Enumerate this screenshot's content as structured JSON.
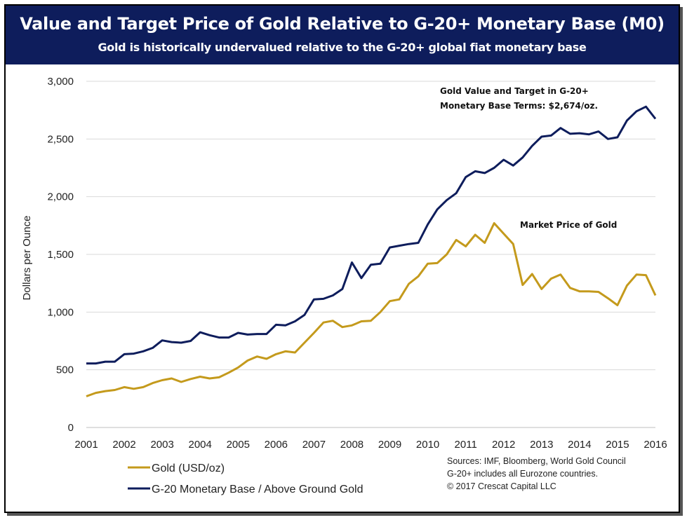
{
  "header": {
    "title": "Value and Target Price of Gold Relative to G-20+ Monetary Base (M0)",
    "subtitle": "Gold is historically undervalued relative to the G-20+ global fiat monetary base",
    "background": "#0e1d5c"
  },
  "annotations": {
    "target_line1": "Gold Value and Target in G-20+",
    "target_line2": "Monetary Base Terms: $2,674/oz.",
    "market": "Market Price of Gold"
  },
  "sources": {
    "line1": "Sources: IMF, Bloomberg, World Gold Council",
    "line2": "G-20+ includes all Eurozone countries.",
    "line3": "© 2017 Crescat Capital LLC"
  },
  "chart_data": {
    "type": "line",
    "title": "Value and Target Price of Gold Relative to G-20+ Monetary Base (M0)",
    "subtitle": "Gold is historically undervalued relative to the G-20+ global fiat monetary base",
    "xlabel": "",
    "ylabel": "Dollars per Ounce",
    "xlim": [
      2001,
      2016
    ],
    "ylim": [
      0,
      3000
    ],
    "x_ticks": [
      "2001",
      "2002",
      "2003",
      "2004",
      "2005",
      "2006",
      "2007",
      "2008",
      "2009",
      "2010",
      "2011",
      "2012",
      "2013",
      "2014",
      "2015",
      "2016"
    ],
    "y_ticks": [
      "0",
      "500",
      "1,000",
      "1,500",
      "2,000",
      "2,500",
      "3,000"
    ],
    "y_tick_values": [
      0,
      500,
      1000,
      1500,
      2000,
      2500,
      3000
    ],
    "grid": true,
    "legend_position": "bottom-left",
    "x": [
      2001.0,
      2001.25,
      2001.5,
      2001.75,
      2002.0,
      2002.25,
      2002.5,
      2002.75,
      2003.0,
      2003.25,
      2003.5,
      2003.75,
      2004.0,
      2004.25,
      2004.5,
      2004.75,
      2005.0,
      2005.25,
      2005.5,
      2005.75,
      2006.0,
      2006.25,
      2006.5,
      2006.75,
      2007.0,
      2007.25,
      2007.5,
      2007.75,
      2008.0,
      2008.25,
      2008.5,
      2008.75,
      2009.0,
      2009.25,
      2009.5,
      2009.75,
      2010.0,
      2010.25,
      2010.5,
      2010.75,
      2011.0,
      2011.25,
      2011.5,
      2011.75,
      2012.0,
      2012.25,
      2012.5,
      2012.75,
      2013.0,
      2013.25,
      2013.5,
      2013.75,
      2014.0,
      2014.25,
      2014.5,
      2014.75,
      2015.0,
      2015.25,
      2015.5,
      2015.75,
      2016.0
    ],
    "series": [
      {
        "name": "Gold (USD/oz)",
        "color": "#c49a1c",
        "values": [
          270,
          300,
          315,
          325,
          350,
          335,
          350,
          385,
          410,
          425,
          395,
          420,
          440,
          425,
          435,
          475,
          520,
          580,
          615,
          595,
          635,
          660,
          650,
          735,
          820,
          910,
          925,
          870,
          885,
          920,
          925,
          1000,
          1095,
          1110,
          1245,
          1310,
          1420,
          1425,
          1500,
          1625,
          1570,
          1670,
          1600,
          1770,
          1680,
          1590,
          1235,
          1330,
          1200,
          1290,
          1325,
          1210,
          1180,
          1180,
          1175,
          1120,
          1060,
          1230,
          1325,
          1320,
          1145
        ]
      },
      {
        "name": "G-20 Monetary Base / Above Ground Gold",
        "color": "#0e1d5c",
        "values": [
          555,
          555,
          570,
          570,
          635,
          640,
          660,
          690,
          755,
          740,
          735,
          750,
          825,
          800,
          780,
          780,
          820,
          805,
          810,
          810,
          890,
          885,
          920,
          975,
          1110,
          1115,
          1145,
          1200,
          1430,
          1295,
          1410,
          1420,
          1560,
          1575,
          1590,
          1600,
          1760,
          1890,
          1970,
          2030,
          2170,
          2220,
          2205,
          2250,
          2320,
          2270,
          2340,
          2440,
          2520,
          2530,
          2595,
          2545,
          2550,
          2540,
          2565,
          2500,
          2515,
          2660,
          2740,
          2780,
          2675
        ]
      }
    ]
  }
}
